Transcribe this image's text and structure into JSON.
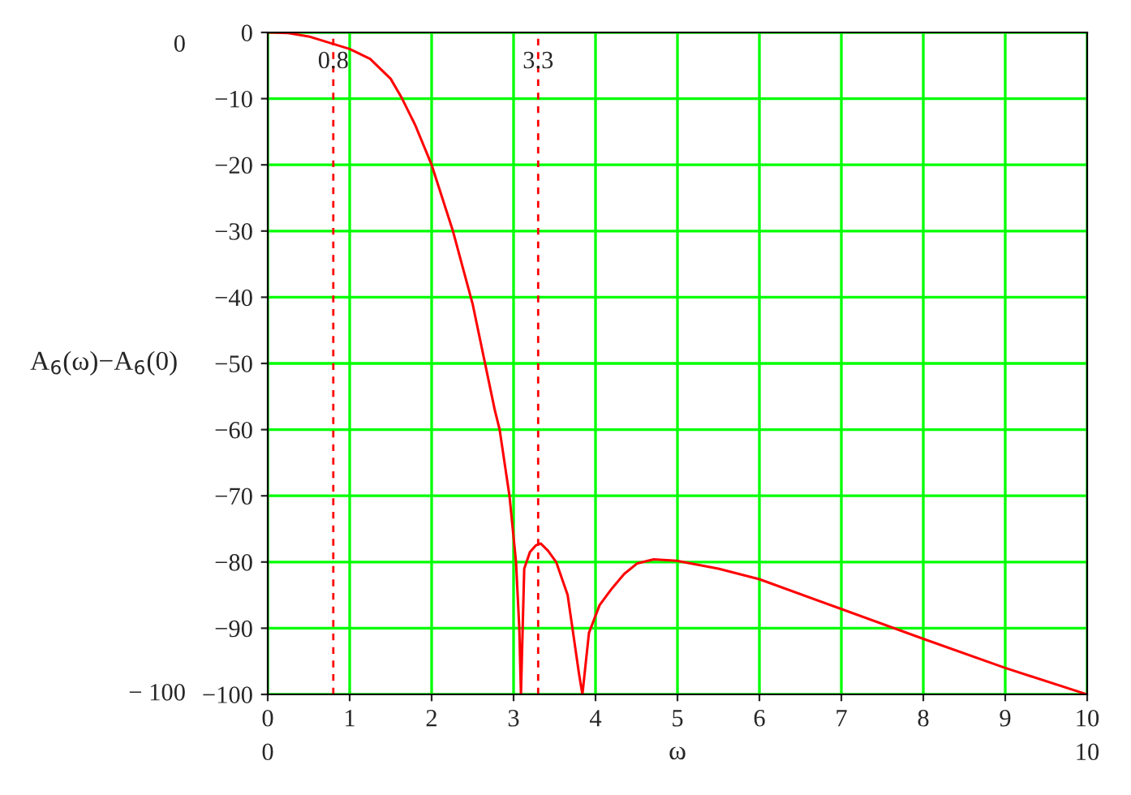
{
  "chart_data": {
    "type": "line",
    "xlabel": "ω",
    "ylabel": "A$_{6}$(ω)−A$_{6}$(0)",
    "xlim": [
      0,
      10
    ],
    "ylim": [
      -100,
      0
    ],
    "xticks": [
      0,
      1,
      2,
      3,
      4,
      5,
      6,
      7,
      8,
      9,
      10
    ],
    "yticks": [
      -100,
      -90,
      -80,
      -70,
      -60,
      -50,
      -40,
      -30,
      -20,
      -10,
      0
    ],
    "grid": true,
    "line_style": "solid",
    "series": [
      {
        "color": "#ff0000",
        "x": [
          0,
          0.25,
          0.5,
          1,
          1.25,
          1.5,
          1.64,
          1.8,
          2,
          2.26,
          2.5,
          2.77,
          2.83,
          2.95,
          3.03,
          3.07,
          3.09,
          3.13,
          3.2,
          3.27,
          3.33,
          3.42,
          3.52,
          3.66,
          3.8,
          3.84,
          3.92,
          4.05,
          4.2,
          4.35,
          4.51,
          4.71,
          4.99,
          5.5,
          6,
          7,
          8,
          9,
          10
        ],
        "values": [
          0,
          -0.1,
          -0.6,
          -2.5,
          -4,
          -7,
          -10,
          -14,
          -20,
          -30,
          -41,
          -57,
          -60,
          -70,
          -80,
          -90,
          -100,
          -81,
          -78.5,
          -77.5,
          -77.2,
          -78.3,
          -80,
          -85,
          -97,
          -100,
          -90.7,
          -86.5,
          -84,
          -81.8,
          -80.2,
          -79.6,
          -79.8,
          -81,
          -82.6,
          -87.1,
          -91.6,
          -96,
          -100
        ]
      }
    ],
    "ref_lines": [
      {
        "axis": "x",
        "value": 0.8,
        "label": "0.8",
        "color": "#ff0000",
        "line_style": "dashed"
      },
      {
        "axis": "x",
        "value": 3.3,
        "label": "3.3",
        "color": "#ff0000",
        "line_style": "dashed"
      }
    ],
    "annotations": [
      "0",
      "− 100",
      "0",
      "10"
    ]
  }
}
